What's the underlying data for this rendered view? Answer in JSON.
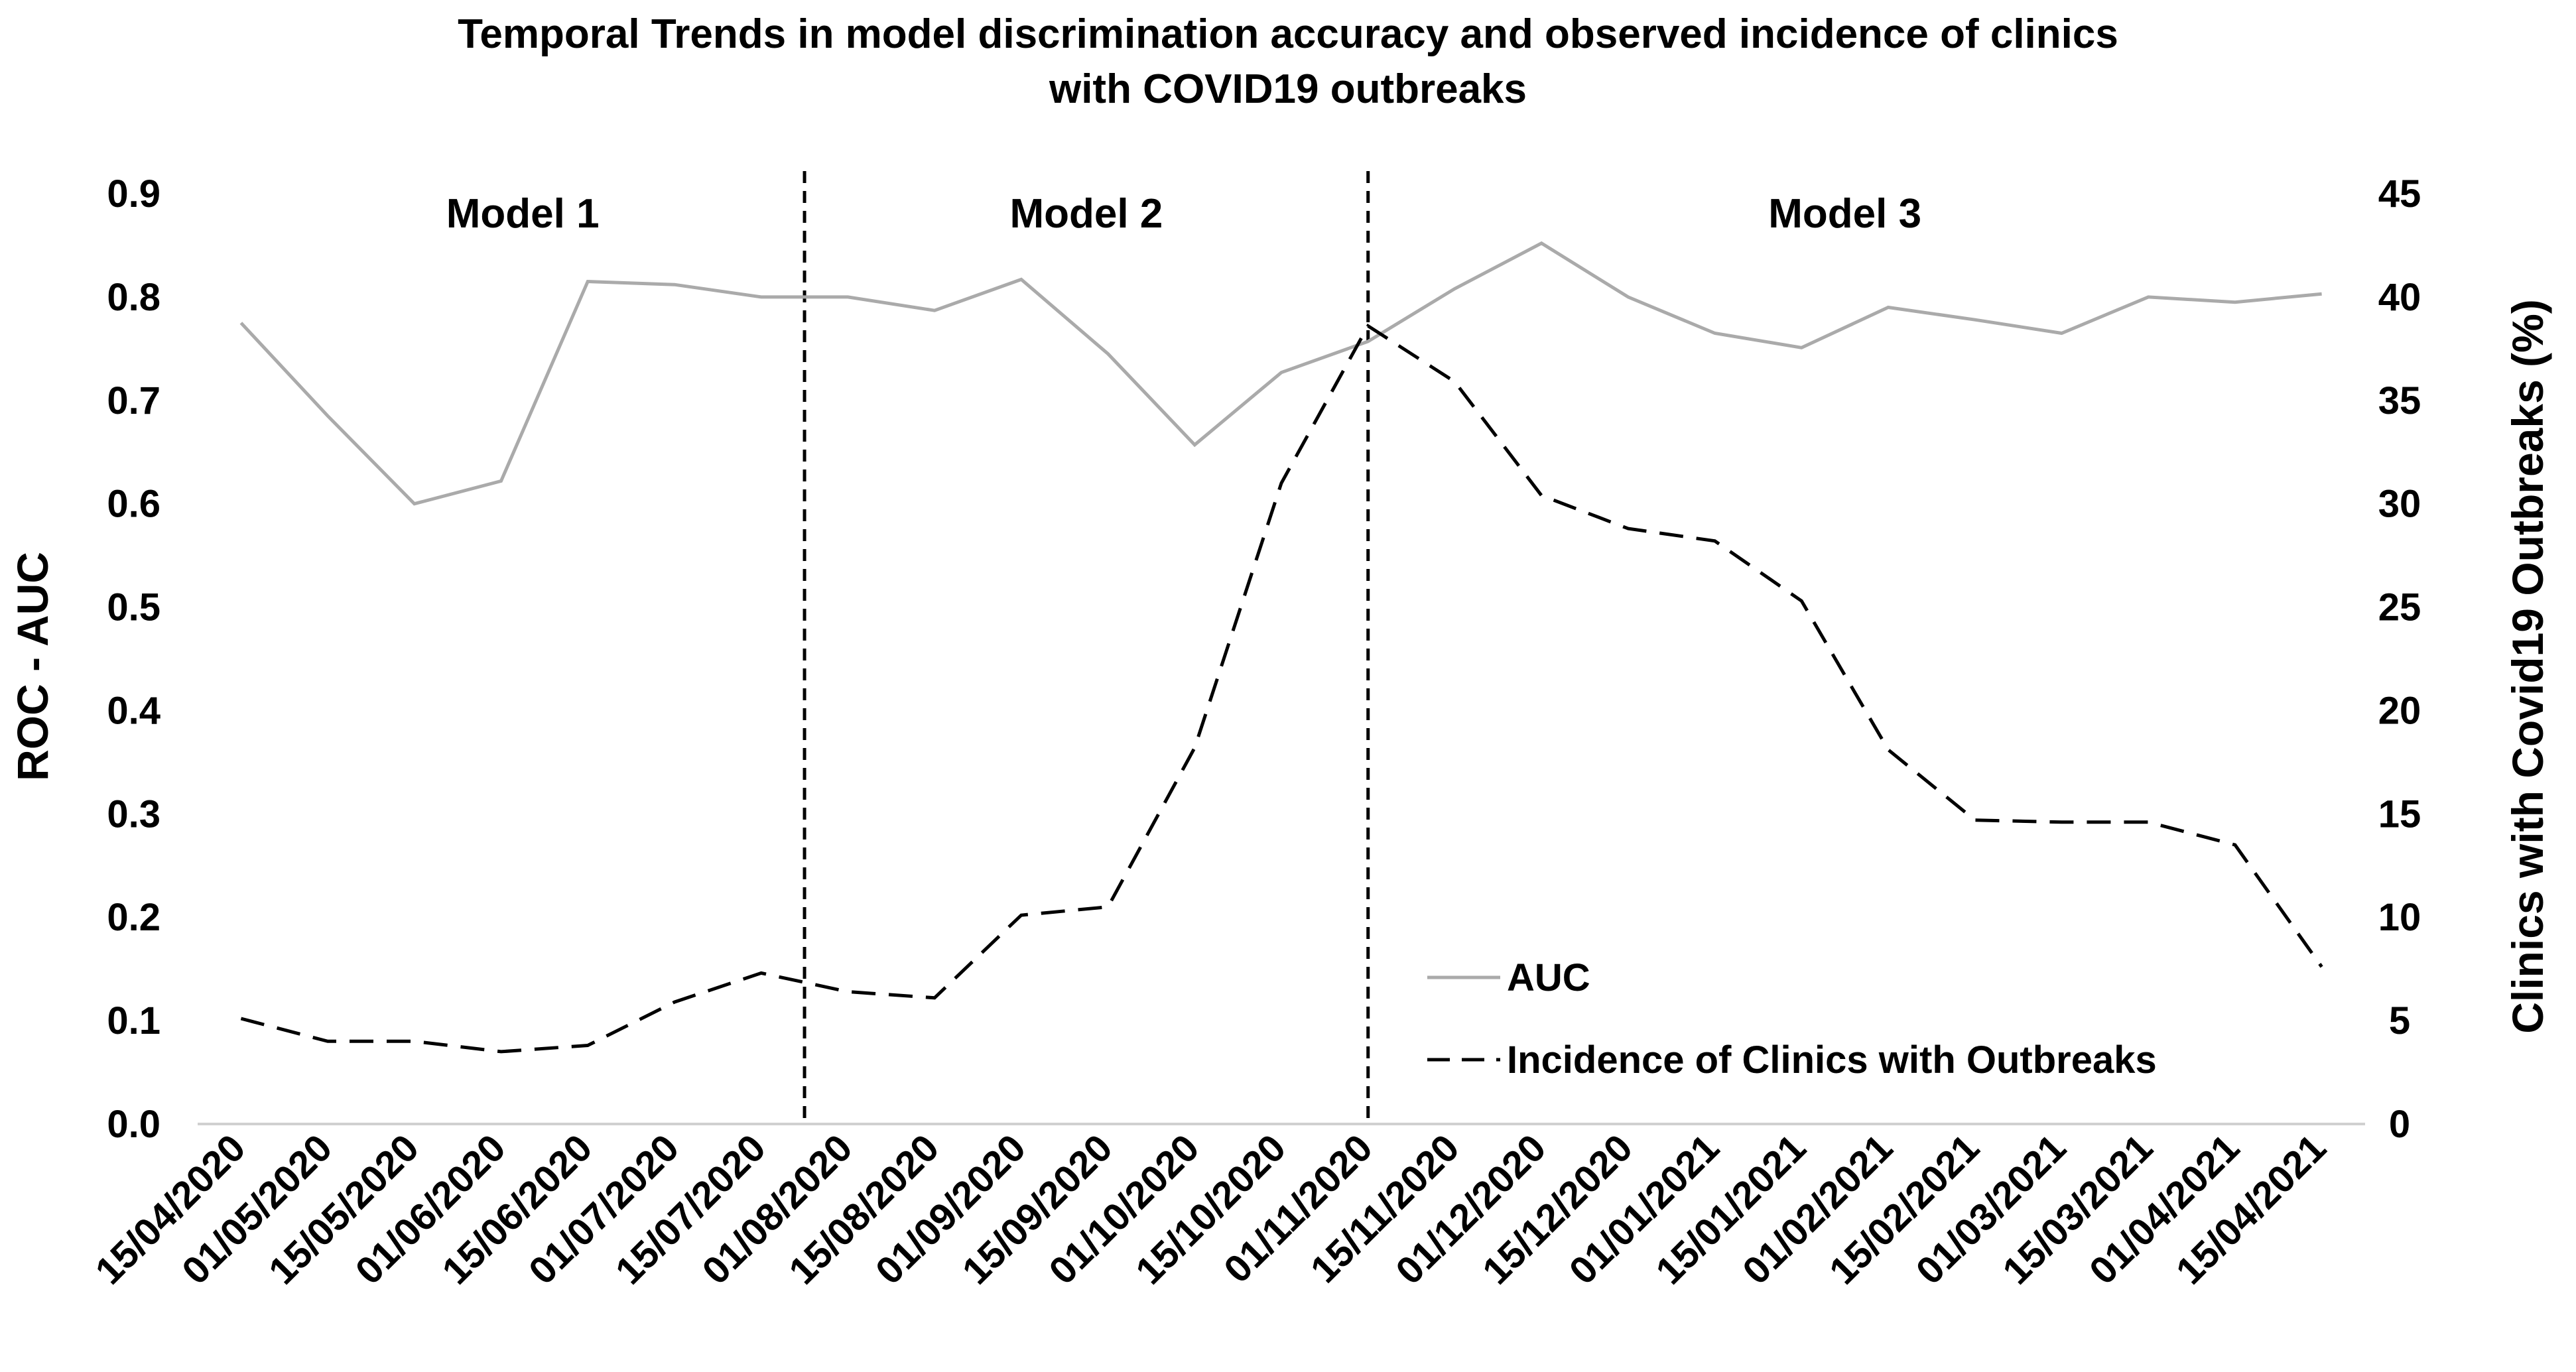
{
  "chart_data": {
    "type": "line",
    "title_lines": [
      "Temporal Trends in model discrimination accuracy and observed incidence of clinics",
      "with COVID19 outbreaks"
    ],
    "categories": [
      "15/04/2020",
      "01/05/2020",
      "15/05/2020",
      "01/06/2020",
      "15/06/2020",
      "01/07/2020",
      "15/07/2020",
      "01/08/2020",
      "15/08/2020",
      "01/09/2020",
      "15/09/2020",
      "01/10/2020",
      "15/10/2020",
      "01/11/2020",
      "15/11/2020",
      "01/12/2020",
      "15/12/2020",
      "01/01/2021",
      "15/01/2021",
      "01/02/2021",
      "15/02/2021",
      "01/03/2021",
      "15/03/2021",
      "01/04/2021",
      "15/04/2021"
    ],
    "series": [
      {
        "name": "AUC",
        "axis": "left",
        "style": "solid",
        "color": "#aaaaaa",
        "values": [
          0.775,
          0.685,
          0.6,
          0.622,
          0.815,
          0.812,
          0.8,
          0.8,
          0.787,
          0.817,
          0.745,
          0.657,
          0.727,
          0.757,
          0.808,
          0.852,
          0.8,
          0.765,
          0.751,
          0.79,
          0.778,
          0.765,
          0.8,
          0.795,
          0.803
        ]
      },
      {
        "name": "Incidence of Clinics with Outbreaks",
        "axis": "right",
        "style": "dashed",
        "color": "#000000",
        "values": [
          5.1,
          4.0,
          4.0,
          3.5,
          3.8,
          5.9,
          7.3,
          6.4,
          6.1,
          10.1,
          10.5,
          18.2,
          31.0,
          38.6,
          35.9,
          30.4,
          28.8,
          28.2,
          25.3,
          18.1,
          14.7,
          14.6,
          14.6,
          13.5,
          7.6
        ]
      }
    ],
    "ylabel": "ROC - AUC",
    "ylim": [
      0,
      0.9
    ],
    "yticks": [
      "0.0",
      "0.1",
      "0.2",
      "0.3",
      "0.4",
      "0.5",
      "0.6",
      "0.7",
      "0.8",
      "0.9"
    ],
    "y2label": "Clinics with Covid19 Outbreaks (%)",
    "y2lim": [
      0,
      45
    ],
    "y2ticks": [
      "0",
      "5",
      "10",
      "15",
      "20",
      "25",
      "30",
      "35",
      "40",
      "45"
    ],
    "dividers": [
      {
        "name": "divider-model1-model2",
        "between": [
          6,
          7
        ]
      },
      {
        "name": "divider-model2-model3",
        "at": 13
      }
    ],
    "models": [
      {
        "label": "Model 1",
        "from": 0,
        "to": 6.5
      },
      {
        "label": "Model 2",
        "from": 6.5,
        "to": 13
      },
      {
        "label": "Model 3",
        "from": 13,
        "to": 24
      }
    ],
    "legend_position": "bottom-right",
    "grid": false
  }
}
